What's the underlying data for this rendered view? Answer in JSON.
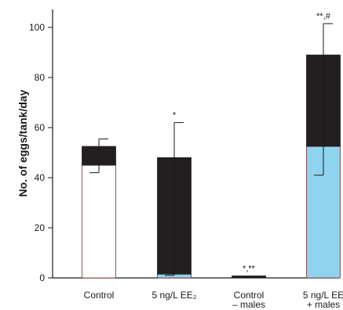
{
  "chart_data": {
    "type": "bar",
    "ylabel": "No. of eggs/tank/day",
    "xlabel": "",
    "ylim": [
      0,
      105
    ],
    "yticks": [
      0,
      20,
      40,
      60,
      80,
      100
    ],
    "grid": false,
    "categories": [
      {
        "lines": [
          "Control"
        ]
      },
      {
        "lines": [
          "5 ng/L EE₂"
        ]
      },
      {
        "lines": [
          "Control",
          "– males"
        ]
      },
      {
        "lines": [
          "5 ng/L EE",
          "+ males"
        ]
      }
    ],
    "bars": [
      {
        "total": 52.5,
        "lower": 45,
        "lower_color": "#ffffff",
        "error_top": 55.5,
        "error_bottom": 42,
        "annotation": ""
      },
      {
        "total": 48,
        "lower": 1.5,
        "lower_color": "#8fd3ef",
        "error_top": 62,
        "error_bottom": 1,
        "annotation": "*"
      },
      {
        "total": 0.8,
        "lower": 0,
        "lower_color": "#8fd3ef",
        "error_top": null,
        "error_bottom": null,
        "annotation": "*,**"
      },
      {
        "total": 89,
        "lower": 52.5,
        "lower_color": "#8fd3ef",
        "error_top": 101.5,
        "error_bottom": 41,
        "annotation": "**,#"
      }
    ],
    "colors": {
      "upper_segment": "#231f20",
      "axis": "#1a1a1a",
      "control_lower": "#ffffff",
      "treatment_lower": "#8fd3ef",
      "bar_outline": "#7a2a2a"
    }
  }
}
